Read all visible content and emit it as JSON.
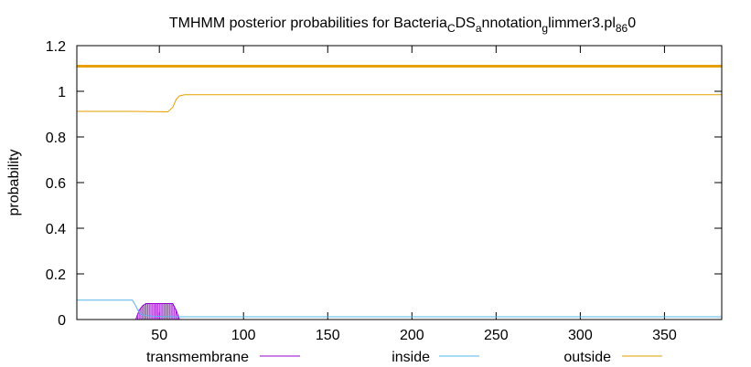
{
  "chart_data": {
    "type": "line",
    "title": {
      "main": "TMHMM posterior probabilities for Bacteria",
      "sub1": "C",
      "mid1": "DS",
      "sub2": "a",
      "mid2": "nnotation",
      "sub3": "g",
      "mid3": "limmer3.pl",
      "sub4": "86",
      "tail": "0"
    },
    "ylabel": "probability",
    "xlabel": "",
    "xlim": [
      1,
      384
    ],
    "ylim": [
      0,
      1.2
    ],
    "xticks": [
      50,
      100,
      150,
      200,
      250,
      300,
      350
    ],
    "yticks": [
      0,
      0.2,
      0.4,
      0.6,
      0.8,
      1,
      1.2
    ],
    "ytick_labels": [
      "0",
      "0.2",
      "0.4",
      "0.6",
      "0.8",
      "1",
      "1.2"
    ],
    "legend_position": "bottom",
    "reference_line": {
      "y": 1.11,
      "color": "#e8a000"
    },
    "series": [
      {
        "name": "transmembrane",
        "color": "#9400d3",
        "style": "impulses",
        "points": [
          [
            36,
            0.0
          ],
          [
            38,
            0.04
          ],
          [
            40,
            0.06
          ],
          [
            42,
            0.07
          ],
          [
            45,
            0.07
          ],
          [
            50,
            0.07
          ],
          [
            55,
            0.07
          ],
          [
            58,
            0.07
          ],
          [
            60,
            0.04
          ],
          [
            62,
            0.0
          ]
        ]
      },
      {
        "name": "inside",
        "color": "#56b4e9",
        "style": "line",
        "points": [
          [
            1,
            0.085
          ],
          [
            34,
            0.085
          ],
          [
            36,
            0.06
          ],
          [
            38,
            0.03
          ],
          [
            40,
            0.02
          ],
          [
            45,
            0.015
          ],
          [
            60,
            0.012
          ],
          [
            384,
            0.012
          ]
        ]
      },
      {
        "name": "outside",
        "color": "#e69f00",
        "style": "line",
        "points": [
          [
            1,
            0.912
          ],
          [
            34,
            0.912
          ],
          [
            55,
            0.91
          ],
          [
            58,
            0.93
          ],
          [
            60,
            0.965
          ],
          [
            62,
            0.98
          ],
          [
            65,
            0.985
          ],
          [
            384,
            0.985
          ]
        ]
      }
    ]
  }
}
